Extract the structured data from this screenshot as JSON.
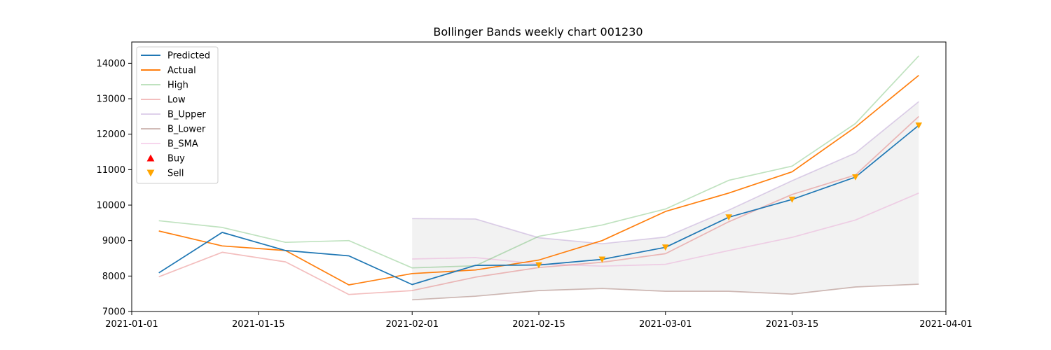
{
  "chart_data": {
    "type": "line",
    "title": "Bollinger Bands weekly chart 001230",
    "xlabel": "",
    "ylabel": "",
    "xlim": [
      "2021-01-01",
      "2021-04-01"
    ],
    "ylim": [
      7000,
      14600
    ],
    "x_ticks": [
      "2021-01-01",
      "2021-01-15",
      "2021-02-01",
      "2021-02-15",
      "2021-03-01",
      "2021-03-15",
      "2021-04-01"
    ],
    "y_ticks": [
      7000,
      8000,
      9000,
      10000,
      11000,
      12000,
      13000,
      14000
    ],
    "legend_position": "top-left",
    "grid": false,
    "dates": [
      "2021-01-04",
      "2021-01-11",
      "2021-01-18",
      "2021-01-25",
      "2021-02-01",
      "2021-02-08",
      "2021-02-15",
      "2021-02-22",
      "2021-03-01",
      "2021-03-08",
      "2021-03-15",
      "2021-03-22",
      "2021-03-29"
    ],
    "band_fill": {
      "color": "#e6e6e6",
      "from": "B_Lower",
      "to": "B_Upper"
    },
    "series": [
      {
        "name": "Predicted",
        "color": "#1f77b4",
        "opacity": 1,
        "values": [
          8090,
          9230,
          8720,
          8570,
          7760,
          8300,
          8310,
          8470,
          8810,
          9660,
          10160,
          10790,
          12250
        ]
      },
      {
        "name": "Actual",
        "color": "#ff7f0e",
        "opacity": 1,
        "values": [
          9270,
          8850,
          8720,
          7750,
          8070,
          8170,
          8450,
          9000,
          9820,
          10340,
          10940,
          12200,
          13660
        ]
      },
      {
        "name": "High",
        "color": "#2ca02c",
        "opacity": 0.3,
        "values": [
          9560,
          9370,
          8950,
          9000,
          8230,
          8290,
          9120,
          9440,
          9890,
          10700,
          11100,
          12300,
          14210
        ]
      },
      {
        "name": "Low",
        "color": "#d62728",
        "opacity": 0.3,
        "values": [
          7980,
          8670,
          8400,
          7480,
          7590,
          7970,
          8240,
          8390,
          8630,
          9530,
          10300,
          10850,
          12500
        ]
      },
      {
        "name": "B_Upper",
        "color": "#9467bd",
        "opacity": 0.3,
        "values": [
          null,
          null,
          null,
          null,
          9620,
          9610,
          9080,
          8910,
          9100,
          9860,
          10690,
          11470,
          12920
        ]
      },
      {
        "name": "B_Lower",
        "color": "#8c564b",
        "opacity": 0.4,
        "values": [
          null,
          null,
          null,
          null,
          7330,
          7430,
          7590,
          7650,
          7570,
          7570,
          7490,
          7690,
          7770
        ]
      },
      {
        "name": "B_SMA",
        "color": "#e377c2",
        "opacity": 0.3,
        "values": [
          null,
          null,
          null,
          null,
          8480,
          8520,
          8340,
          8280,
          8330,
          8720,
          9090,
          9580,
          10340
        ]
      }
    ],
    "markers": [
      {
        "name": "Buy",
        "symbol": "triangle-up",
        "color": "#ff0000",
        "points": []
      },
      {
        "name": "Sell",
        "symbol": "triangle-down",
        "color": "#ffa500",
        "points": [
          {
            "x": "2021-02-15",
            "y": 8310
          },
          {
            "x": "2021-02-22",
            "y": 8470
          },
          {
            "x": "2021-03-01",
            "y": 8810
          },
          {
            "x": "2021-03-08",
            "y": 9660
          },
          {
            "x": "2021-03-15",
            "y": 10160
          },
          {
            "x": "2021-03-22",
            "y": 10790
          },
          {
            "x": "2021-03-29",
            "y": 12250
          }
        ]
      }
    ]
  }
}
